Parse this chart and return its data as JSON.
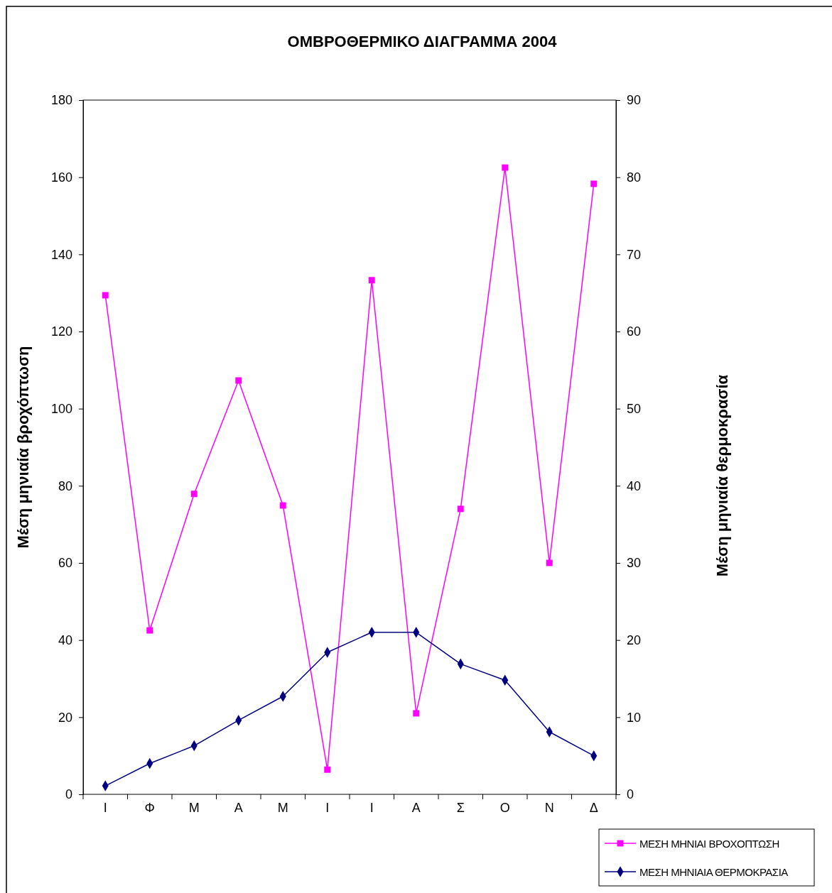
{
  "chart_data": {
    "type": "line",
    "title": "ΟΜΒΡΟΘΕΡΜΙΚΟ ΔΙΑΓΡΑΜΜΑ 2004",
    "ylabel": "Μέση μηνιαία βροχόπτωση",
    "y2label": "Μέση μηνιαία θερμοκρασία",
    "categories": [
      "Ι",
      "Φ",
      "Μ",
      "Α",
      "Μ",
      "Ι",
      "Ι",
      "Α",
      "Σ",
      "Ο",
      "Ν",
      "Δ"
    ],
    "series": [
      {
        "name": "ΜΕΣΗ ΜΗΝΙΑΙ ΒΡΟΧΟΠΤΩΣΗ",
        "color": "#ff00ff",
        "marker": "square",
        "values": [
          129.4,
          42.5,
          77.9,
          107.3,
          74.9,
          6.4,
          133.3,
          21.0,
          74.0,
          162.5,
          60.0,
          158.3
        ]
      },
      {
        "name": "ΜΕΣΗ ΜΗΝΙΑΙΑ ΘΕΡΜΟΚΡΑΣΙΑ",
        "color": "#000080",
        "marker": "diamond",
        "axis": "y2",
        "values": [
          1.1,
          4.0,
          6.3,
          9.6,
          12.7,
          18.4,
          21.0,
          21.0,
          16.9,
          14.8,
          8.1,
          5.0
        ]
      }
    ],
    "ylim": [
      0,
      180
    ],
    "yticks": [
      0,
      20,
      40,
      60,
      80,
      100,
      120,
      140,
      160,
      180
    ],
    "y2lim": [
      0,
      90
    ],
    "y2ticks": [
      0,
      10,
      20,
      30,
      40,
      50,
      60,
      70,
      80,
      90
    ],
    "grid": false,
    "legend": "bottom right",
    "line_style": "solid"
  }
}
